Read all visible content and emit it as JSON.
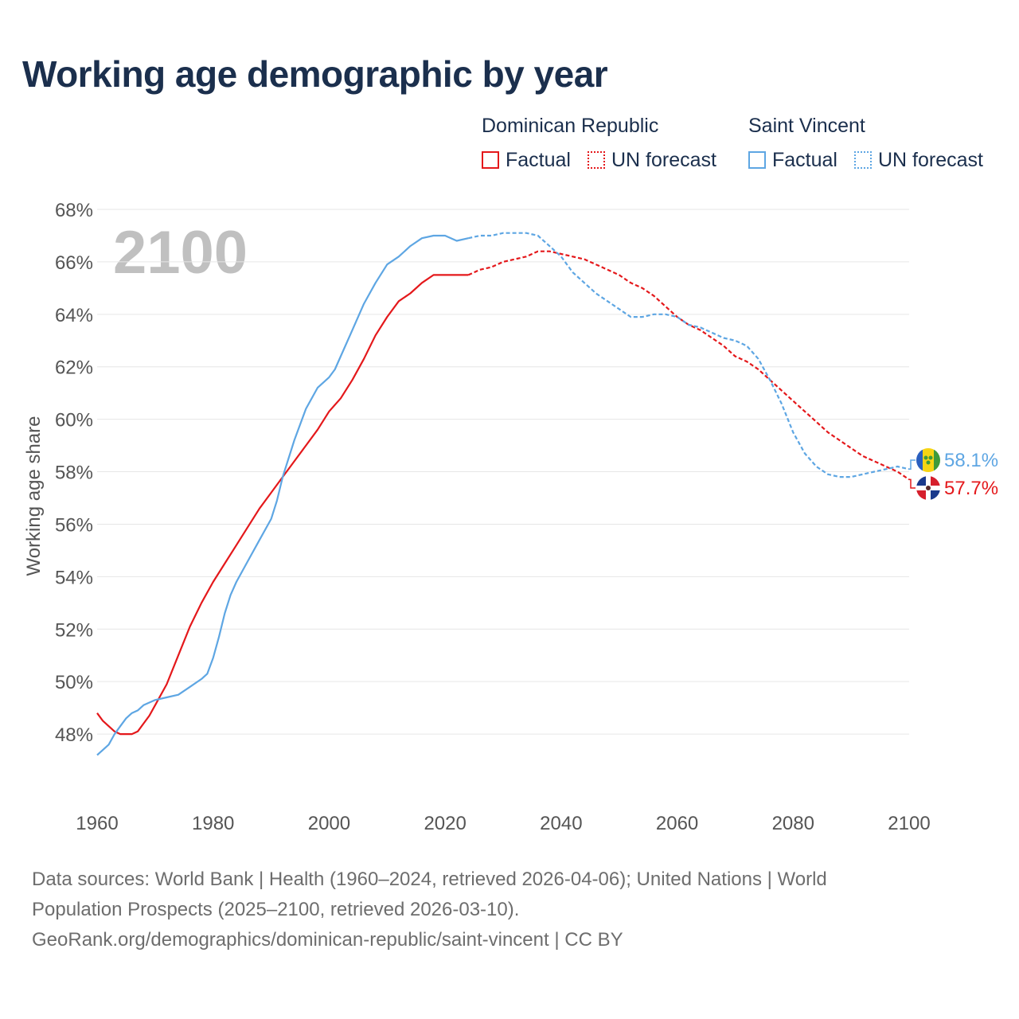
{
  "title": "Working age demographic by year",
  "legend": {
    "groups": [
      {
        "name": "Dominican Republic",
        "factual_label": "Factual",
        "forecast_label": "UN forecast",
        "color": "#e4181b"
      },
      {
        "name": "Saint Vincent",
        "factual_label": "Factual",
        "forecast_label": "UN forecast",
        "color": "#5ea6e3"
      }
    ]
  },
  "chart_data": {
    "type": "line",
    "title": "Working age demographic by year",
    "xlabel": "",
    "ylabel": "Working age share",
    "xlim": [
      1960,
      2100
    ],
    "ylim": [
      46,
      68
    ],
    "x_ticks": [
      1960,
      1980,
      2000,
      2020,
      2040,
      2060,
      2080,
      2100
    ],
    "y_ticks": [
      48,
      50,
      52,
      54,
      56,
      58,
      60,
      62,
      64,
      66,
      68
    ],
    "y_tick_labels": [
      "48%",
      "50%",
      "52%",
      "54%",
      "56%",
      "58%",
      "60%",
      "62%",
      "64%",
      "66%",
      "68%"
    ],
    "year_watermark": "2100",
    "factual_end_year": 2024,
    "series": [
      {
        "name": "Dominican Republic",
        "color": "#e4181b",
        "end_label": "57.7%",
        "points": [
          [
            1960,
            48.8
          ],
          [
            1961,
            48.5
          ],
          [
            1962,
            48.3
          ],
          [
            1963,
            48.1
          ],
          [
            1964,
            48.0
          ],
          [
            1965,
            48.0
          ],
          [
            1966,
            48.0
          ],
          [
            1967,
            48.1
          ],
          [
            1968,
            48.4
          ],
          [
            1969,
            48.7
          ],
          [
            1970,
            49.1
          ],
          [
            1972,
            49.9
          ],
          [
            1974,
            51.0
          ],
          [
            1976,
            52.1
          ],
          [
            1978,
            53.0
          ],
          [
            1980,
            53.8
          ],
          [
            1982,
            54.5
          ],
          [
            1984,
            55.2
          ],
          [
            1986,
            55.9
          ],
          [
            1988,
            56.6
          ],
          [
            1990,
            57.2
          ],
          [
            1992,
            57.8
          ],
          [
            1994,
            58.4
          ],
          [
            1996,
            59.0
          ],
          [
            1998,
            59.6
          ],
          [
            2000,
            60.3
          ],
          [
            2002,
            60.8
          ],
          [
            2004,
            61.5
          ],
          [
            2006,
            62.3
          ],
          [
            2008,
            63.2
          ],
          [
            2010,
            63.9
          ],
          [
            2012,
            64.5
          ],
          [
            2014,
            64.8
          ],
          [
            2016,
            65.2
          ],
          [
            2018,
            65.5
          ],
          [
            2020,
            65.5
          ],
          [
            2022,
            65.5
          ],
          [
            2024,
            65.5
          ],
          [
            2026,
            65.7
          ],
          [
            2028,
            65.8
          ],
          [
            2030,
            66.0
          ],
          [
            2032,
            66.1
          ],
          [
            2034,
            66.2
          ],
          [
            2036,
            66.4
          ],
          [
            2038,
            66.4
          ],
          [
            2040,
            66.3
          ],
          [
            2042,
            66.2
          ],
          [
            2044,
            66.1
          ],
          [
            2046,
            65.9
          ],
          [
            2048,
            65.7
          ],
          [
            2050,
            65.5
          ],
          [
            2052,
            65.2
          ],
          [
            2054,
            65.0
          ],
          [
            2056,
            64.7
          ],
          [
            2058,
            64.3
          ],
          [
            2060,
            63.9
          ],
          [
            2062,
            63.6
          ],
          [
            2064,
            63.4
          ],
          [
            2066,
            63.1
          ],
          [
            2068,
            62.8
          ],
          [
            2070,
            62.4
          ],
          [
            2072,
            62.2
          ],
          [
            2074,
            61.9
          ],
          [
            2076,
            61.5
          ],
          [
            2078,
            61.1
          ],
          [
            2080,
            60.7
          ],
          [
            2082,
            60.3
          ],
          [
            2084,
            59.9
          ],
          [
            2086,
            59.5
          ],
          [
            2088,
            59.2
          ],
          [
            2090,
            58.9
          ],
          [
            2092,
            58.6
          ],
          [
            2094,
            58.4
          ],
          [
            2096,
            58.2
          ],
          [
            2098,
            58.0
          ],
          [
            2100,
            57.7
          ]
        ]
      },
      {
        "name": "Saint Vincent",
        "color": "#5ea6e3",
        "end_label": "58.1%",
        "points": [
          [
            1960,
            47.2
          ],
          [
            1961,
            47.4
          ],
          [
            1962,
            47.6
          ],
          [
            1963,
            48.0
          ],
          [
            1964,
            48.3
          ],
          [
            1965,
            48.6
          ],
          [
            1966,
            48.8
          ],
          [
            1967,
            48.9
          ],
          [
            1968,
            49.1
          ],
          [
            1970,
            49.3
          ],
          [
            1972,
            49.4
          ],
          [
            1974,
            49.5
          ],
          [
            1976,
            49.8
          ],
          [
            1978,
            50.1
          ],
          [
            1979,
            50.3
          ],
          [
            1980,
            50.9
          ],
          [
            1981,
            51.7
          ],
          [
            1982,
            52.6
          ],
          [
            1983,
            53.3
          ],
          [
            1984,
            53.8
          ],
          [
            1986,
            54.6
          ],
          [
            1988,
            55.4
          ],
          [
            1990,
            56.2
          ],
          [
            1991,
            56.9
          ],
          [
            1992,
            57.8
          ],
          [
            1994,
            59.2
          ],
          [
            1996,
            60.4
          ],
          [
            1998,
            61.2
          ],
          [
            2000,
            61.6
          ],
          [
            2001,
            61.9
          ],
          [
            2002,
            62.4
          ],
          [
            2004,
            63.4
          ],
          [
            2006,
            64.4
          ],
          [
            2008,
            65.2
          ],
          [
            2010,
            65.9
          ],
          [
            2012,
            66.2
          ],
          [
            2014,
            66.6
          ],
          [
            2016,
            66.9
          ],
          [
            2018,
            67.0
          ],
          [
            2020,
            67.0
          ],
          [
            2022,
            66.8
          ],
          [
            2024,
            66.9
          ],
          [
            2026,
            67.0
          ],
          [
            2028,
            67.0
          ],
          [
            2030,
            67.1
          ],
          [
            2032,
            67.1
          ],
          [
            2034,
            67.1
          ],
          [
            2036,
            67.0
          ],
          [
            2038,
            66.6
          ],
          [
            2040,
            66.2
          ],
          [
            2042,
            65.6
          ],
          [
            2044,
            65.2
          ],
          [
            2046,
            64.8
          ],
          [
            2048,
            64.5
          ],
          [
            2050,
            64.2
          ],
          [
            2052,
            63.9
          ],
          [
            2054,
            63.9
          ],
          [
            2056,
            64.0
          ],
          [
            2058,
            64.0
          ],
          [
            2060,
            63.9
          ],
          [
            2062,
            63.6
          ],
          [
            2064,
            63.5
          ],
          [
            2066,
            63.3
          ],
          [
            2068,
            63.1
          ],
          [
            2070,
            63.0
          ],
          [
            2072,
            62.8
          ],
          [
            2074,
            62.3
          ],
          [
            2076,
            61.5
          ],
          [
            2078,
            60.6
          ],
          [
            2080,
            59.5
          ],
          [
            2082,
            58.7
          ],
          [
            2084,
            58.2
          ],
          [
            2086,
            57.9
          ],
          [
            2088,
            57.8
          ],
          [
            2090,
            57.8
          ],
          [
            2092,
            57.9
          ],
          [
            2094,
            58.0
          ],
          [
            2096,
            58.1
          ],
          [
            2098,
            58.2
          ],
          [
            2100,
            58.1
          ]
        ]
      }
    ]
  },
  "footer": {
    "line1": "Data sources: World Bank | Health (1960–2024, retrieved 2026-04-06); United Nations | World",
    "line2": "Population Prospects (2025–2100, retrieved 2026-03-10).",
    "line3": "GeoRank.org/demographics/dominican-republic/saint-vincent | CC BY"
  }
}
